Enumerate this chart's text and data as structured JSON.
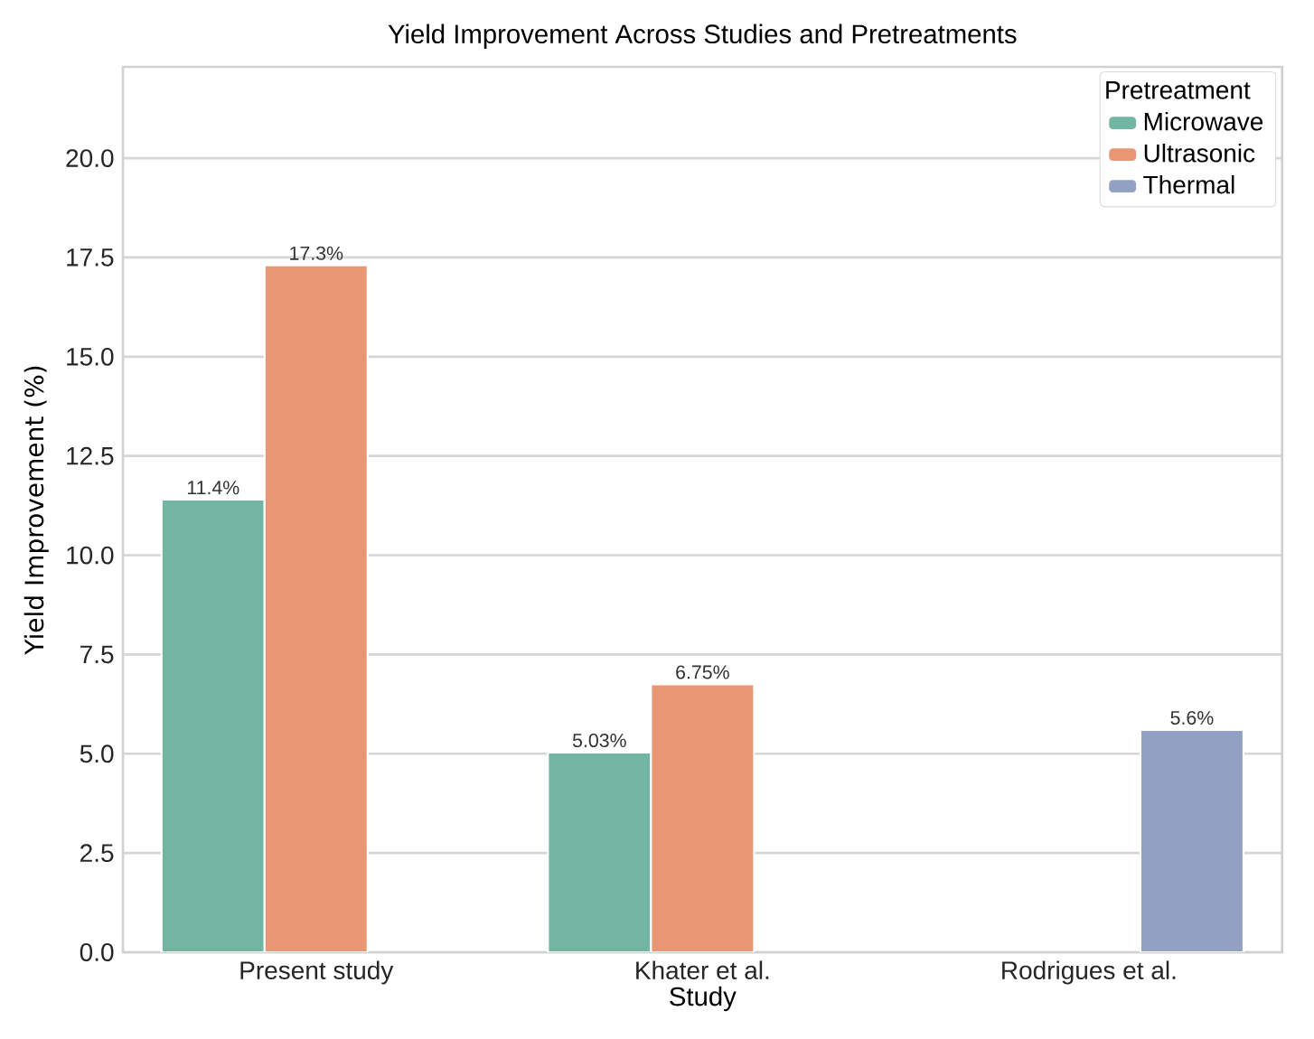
{
  "chart_data": {
    "type": "bar",
    "title": "Yield Improvement Across Studies and Pretreatments",
    "xlabel": "Study",
    "ylabel": "Yield Improvement (%)",
    "legend_title": "Pretreatment",
    "categories": [
      "Present study",
      "Khater et al.",
      "Rodrigues et al."
    ],
    "series": [
      {
        "name": "Microwave",
        "color": "#72b6a1",
        "values": [
          11.4,
          5.03,
          null
        ],
        "value_labels": [
          "11.4%",
          "5.03%",
          null
        ]
      },
      {
        "name": "Ultrasonic",
        "color": "#e99675",
        "values": [
          17.3,
          6.75,
          null
        ],
        "value_labels": [
          "17.3%",
          "6.75%",
          null
        ]
      },
      {
        "name": "Thermal",
        "color": "#92a0c4",
        "values": [
          null,
          null,
          5.6
        ],
        "value_labels": [
          null,
          null,
          "5.6%"
        ]
      }
    ],
    "ylim": [
      0,
      22.3
    ],
    "yticks": [
      {
        "value": 0,
        "label": "0.0"
      },
      {
        "value": 2.5,
        "label": "2.5"
      },
      {
        "value": 5,
        "label": "5.0"
      },
      {
        "value": 7.5,
        "label": "7.5"
      },
      {
        "value": 10,
        "label": "10.0"
      },
      {
        "value": 12.5,
        "label": "12.5"
      },
      {
        "value": 15,
        "label": "15.0"
      },
      {
        "value": 17.5,
        "label": "17.5"
      },
      {
        "value": 20,
        "label": "20.0"
      }
    ],
    "grid": "y",
    "legend": "top right"
  }
}
